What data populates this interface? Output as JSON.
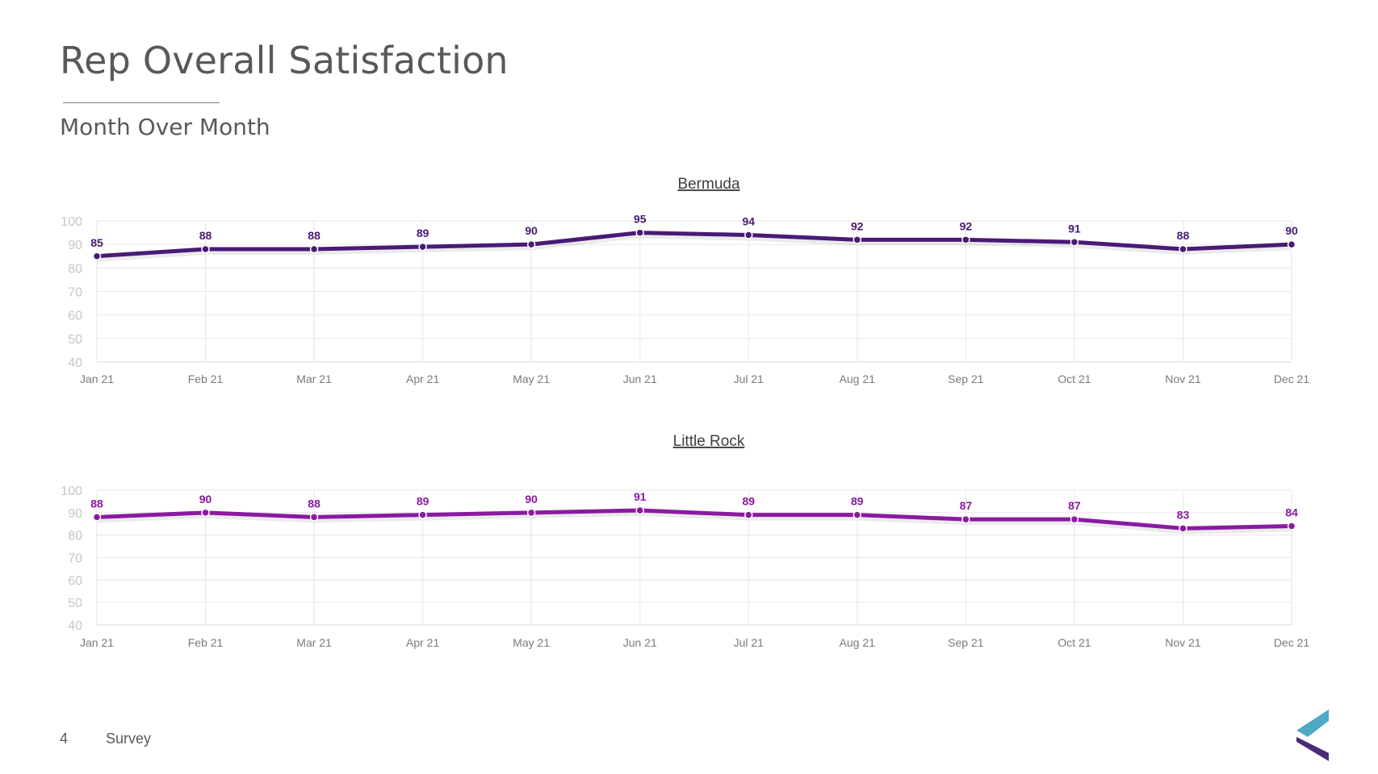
{
  "header": {
    "title": "Rep Overall Satisfaction",
    "subtitle": "Month Over Month"
  },
  "footer": {
    "page_number": "4",
    "label": "Survey"
  },
  "colors": {
    "bermuda_line": "#4a1a75",
    "littlerock_line": "#8a1aa0",
    "grid": "#e6e6e6",
    "tick_text": "#c6c6c6",
    "axis_text": "#7a7a7a",
    "logo_teal": "#4ea9c4",
    "logo_purple": "#4d2a78"
  },
  "chart_data": [
    {
      "type": "line",
      "title": "Bermuda",
      "categories": [
        "Jan 21",
        "Feb 21",
        "Mar 21",
        "Apr 21",
        "May 21",
        "Jun 21",
        "Jul 21",
        "Aug 21",
        "Sep 21",
        "Oct 21",
        "Nov 21",
        "Dec 21"
      ],
      "values": [
        85,
        88,
        88,
        89,
        90,
        95,
        94,
        92,
        92,
        91,
        88,
        90
      ],
      "ylim": [
        40,
        100
      ],
      "yticks": [
        40,
        50,
        60,
        70,
        80,
        90,
        100
      ],
      "grid": true,
      "data_labels": true,
      "legend": "none"
    },
    {
      "type": "line",
      "title": "Little Rock",
      "categories": [
        "Jan 21",
        "Feb 21",
        "Mar 21",
        "Apr 21",
        "May 21",
        "Jun 21",
        "Jul 21",
        "Aug 21",
        "Sep 21",
        "Oct 21",
        "Nov 21",
        "Dec 21"
      ],
      "values": [
        88,
        90,
        88,
        89,
        90,
        91,
        89,
        89,
        87,
        87,
        83,
        84
      ],
      "ylim": [
        40,
        100
      ],
      "yticks": [
        40,
        50,
        60,
        70,
        80,
        90,
        100
      ],
      "grid": true,
      "data_labels": true,
      "legend": "none"
    }
  ]
}
